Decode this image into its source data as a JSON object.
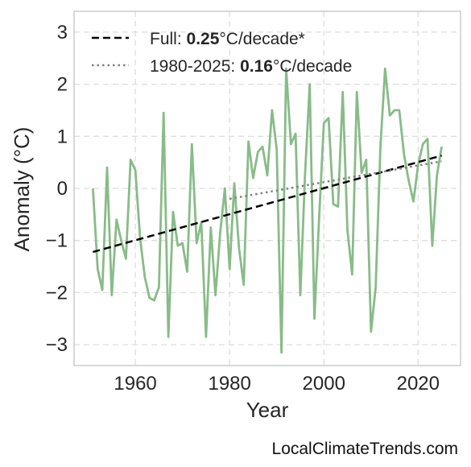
{
  "attribution": "LocalClimateTrends.com",
  "colors": {
    "series": "#88bb88",
    "full_trend": "#000000",
    "recent_trend": "#808080",
    "grid": "#dddddd",
    "frame": "#cccccc"
  },
  "legend": {
    "full": {
      "prefix": "Full: ",
      "value": "0.25",
      "suffix": "°C/decade*"
    },
    "recent": {
      "prefix": "1980-2025: ",
      "value": "0.16",
      "suffix": "°C/decade"
    }
  },
  "chart_data": {
    "type": "line",
    "xlabel": "Year",
    "ylabel": "Anomaly (°C)",
    "xlim": [
      1947,
      2029
    ],
    "ylim": [
      -3.4,
      3.4
    ],
    "xticks": [
      1960,
      1980,
      2000,
      2020
    ],
    "yticks": [
      -3,
      -2,
      -1,
      0,
      1,
      2,
      3
    ],
    "ytick_labels": [
      "−3",
      "−2",
      "−1",
      "0",
      "1",
      "2",
      "3"
    ],
    "grid": true,
    "legend_position": "top-left",
    "series": [
      {
        "x": [
          1951,
          1952,
          1953,
          1954,
          1955,
          1956,
          1957,
          1958,
          1959,
          1960,
          1961,
          1962,
          1963,
          1964,
          1965,
          1966,
          1967,
          1968,
          1969,
          1970,
          1971,
          1972,
          1973,
          1974,
          1975,
          1976,
          1977,
          1978,
          1979,
          1980,
          1981,
          1982,
          1983,
          1984,
          1985,
          1986,
          1987,
          1988,
          1989,
          1990,
          1991,
          1992,
          1993,
          1994,
          1995,
          1996,
          1997,
          1998,
          1999,
          2000,
          2001,
          2002,
          2003,
          2004,
          2005,
          2006,
          2007,
          2008,
          2009,
          2010,
          2011,
          2012,
          2013,
          2014,
          2015,
          2016,
          2017,
          2018,
          2019,
          2020,
          2021,
          2022,
          2023,
          2024,
          2025
        ],
        "y": [
          0.0,
          -1.55,
          -1.95,
          0.4,
          -2.05,
          -0.6,
          -1.0,
          -1.35,
          0.55,
          0.35,
          -0.95,
          -1.7,
          -2.1,
          -2.15,
          -1.9,
          1.45,
          -2.85,
          -0.45,
          -1.1,
          -1.05,
          -1.6,
          0.85,
          -1.05,
          -0.65,
          -2.85,
          -0.75,
          -2.05,
          -0.85,
          0.0,
          -1.55,
          0.1,
          -1.15,
          -1.85,
          0.9,
          0.2,
          0.7,
          0.8,
          0.25,
          1.5,
          0.75,
          -3.15,
          2.3,
          0.85,
          1.05,
          -2.05,
          0.25,
          2.0,
          -2.5,
          -0.55,
          1.25,
          1.35,
          -0.3,
          -0.35,
          1.85,
          -0.8,
          -1.65,
          1.85,
          0.3,
          0.55,
          -2.75,
          -1.9,
          0.8,
          2.3,
          1.4,
          1.5,
          1.5,
          0.65,
          0.15,
          -0.25,
          0.45,
          0.85,
          0.95,
          -1.1,
          0.25,
          0.8
        ]
      },
      {
        "name": "Full",
        "style": "dashed",
        "x": [
          1951,
          2025
        ],
        "y": [
          -1.22,
          0.63
        ]
      },
      {
        "name": "1980-2025",
        "style": "dotted",
        "x": [
          1980,
          2025
        ],
        "y": [
          -0.2,
          0.52
        ]
      }
    ]
  }
}
